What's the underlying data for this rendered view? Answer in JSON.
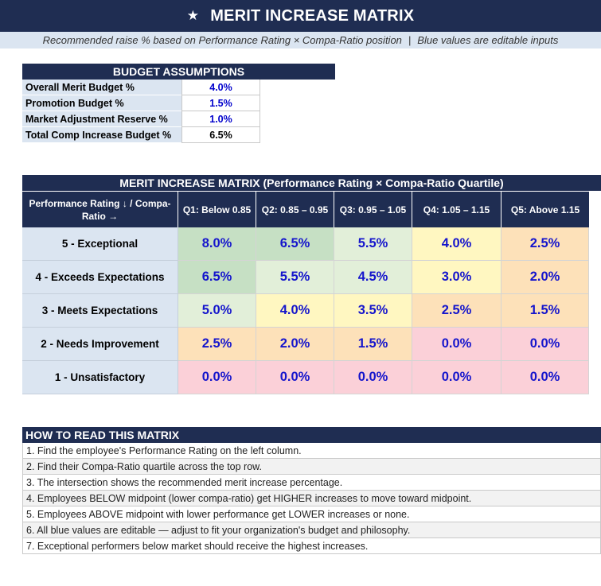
{
  "title": "MERIT INCREASE MATRIX",
  "title_icon": "star-icon",
  "subtitle": {
    "left": "Recommended raise % based on Performance Rating × Compa-Ratio position",
    "separator": "|",
    "right": "Blue values are editable inputs"
  },
  "budget": {
    "header": "BUDGET ASSUMPTIONS",
    "rows": [
      {
        "label": "Overall Merit Budget %",
        "value": "4.0%",
        "editable": true
      },
      {
        "label": "Promotion Budget %",
        "value": "1.5%",
        "editable": true
      },
      {
        "label": "Market Adjustment Reserve %",
        "value": "1.0%",
        "editable": true
      },
      {
        "label": "Total Comp Increase Budget %",
        "value": "6.5%",
        "editable": false
      }
    ]
  },
  "matrix": {
    "header": "MERIT INCREASE MATRIX  (Performance Rating × Compa-Ratio Quartile)",
    "corner_label": "Performance Rating ↓  /  Compa-Ratio →",
    "columns": [
      "Q1: Below 0.85",
      "Q2: 0.85 – 0.95",
      "Q3: 0.95 – 1.05",
      "Q4: 1.05 – 1.15",
      "Q5: Above 1.15"
    ],
    "rows": [
      {
        "label": "5 - Exceptional",
        "values": [
          "8.0%",
          "6.5%",
          "5.5%",
          "4.0%",
          "2.5%"
        ],
        "colors": [
          "green",
          "green",
          "lgreen",
          "yellow",
          "orange"
        ]
      },
      {
        "label": "4 - Exceeds Expectations",
        "values": [
          "6.5%",
          "5.5%",
          "4.5%",
          "3.0%",
          "2.0%"
        ],
        "colors": [
          "green",
          "lgreen",
          "lgreen",
          "yellow",
          "orange"
        ]
      },
      {
        "label": "3 - Meets Expectations",
        "values": [
          "5.0%",
          "4.0%",
          "3.5%",
          "2.5%",
          "1.5%"
        ],
        "colors": [
          "lgreen",
          "yellow",
          "yellow",
          "orange",
          "orange"
        ]
      },
      {
        "label": "2 - Needs Improvement",
        "values": [
          "2.5%",
          "2.0%",
          "1.5%",
          "0.0%",
          "0.0%"
        ],
        "colors": [
          "orange",
          "orange",
          "orange",
          "pink",
          "pink"
        ]
      },
      {
        "label": "1 - Unsatisfactory",
        "values": [
          "0.0%",
          "0.0%",
          "0.0%",
          "0.0%",
          "0.0%"
        ],
        "colors": [
          "pink",
          "pink",
          "pink",
          "pink",
          "pink"
        ]
      }
    ]
  },
  "howto": {
    "header": "HOW TO READ THIS MATRIX",
    "items": [
      "1. Find the employee's Performance Rating on the left column.",
      "2. Find their Compa-Ratio quartile across the top row.",
      "3. The intersection shows the recommended merit increase percentage.",
      "4. Employees BELOW midpoint (lower compa-ratio) get HIGHER increases to move toward midpoint.",
      "5. Employees ABOVE midpoint with lower performance get LOWER increases or none.",
      "6. All blue values are editable — adjust to fit your organization's budget and philosophy.",
      "7. Exceptional performers below market should receive the highest increases."
    ]
  },
  "colors": {
    "header_bg": "#1f2d52",
    "label_bg": "#dbe5f1",
    "editable_text": "#0000cc",
    "green": "#c6e0c4",
    "lgreen": "#e2efd9",
    "yellow": "#fff7c1",
    "orange": "#fde1b9",
    "pink": "#fbd0d8"
  }
}
